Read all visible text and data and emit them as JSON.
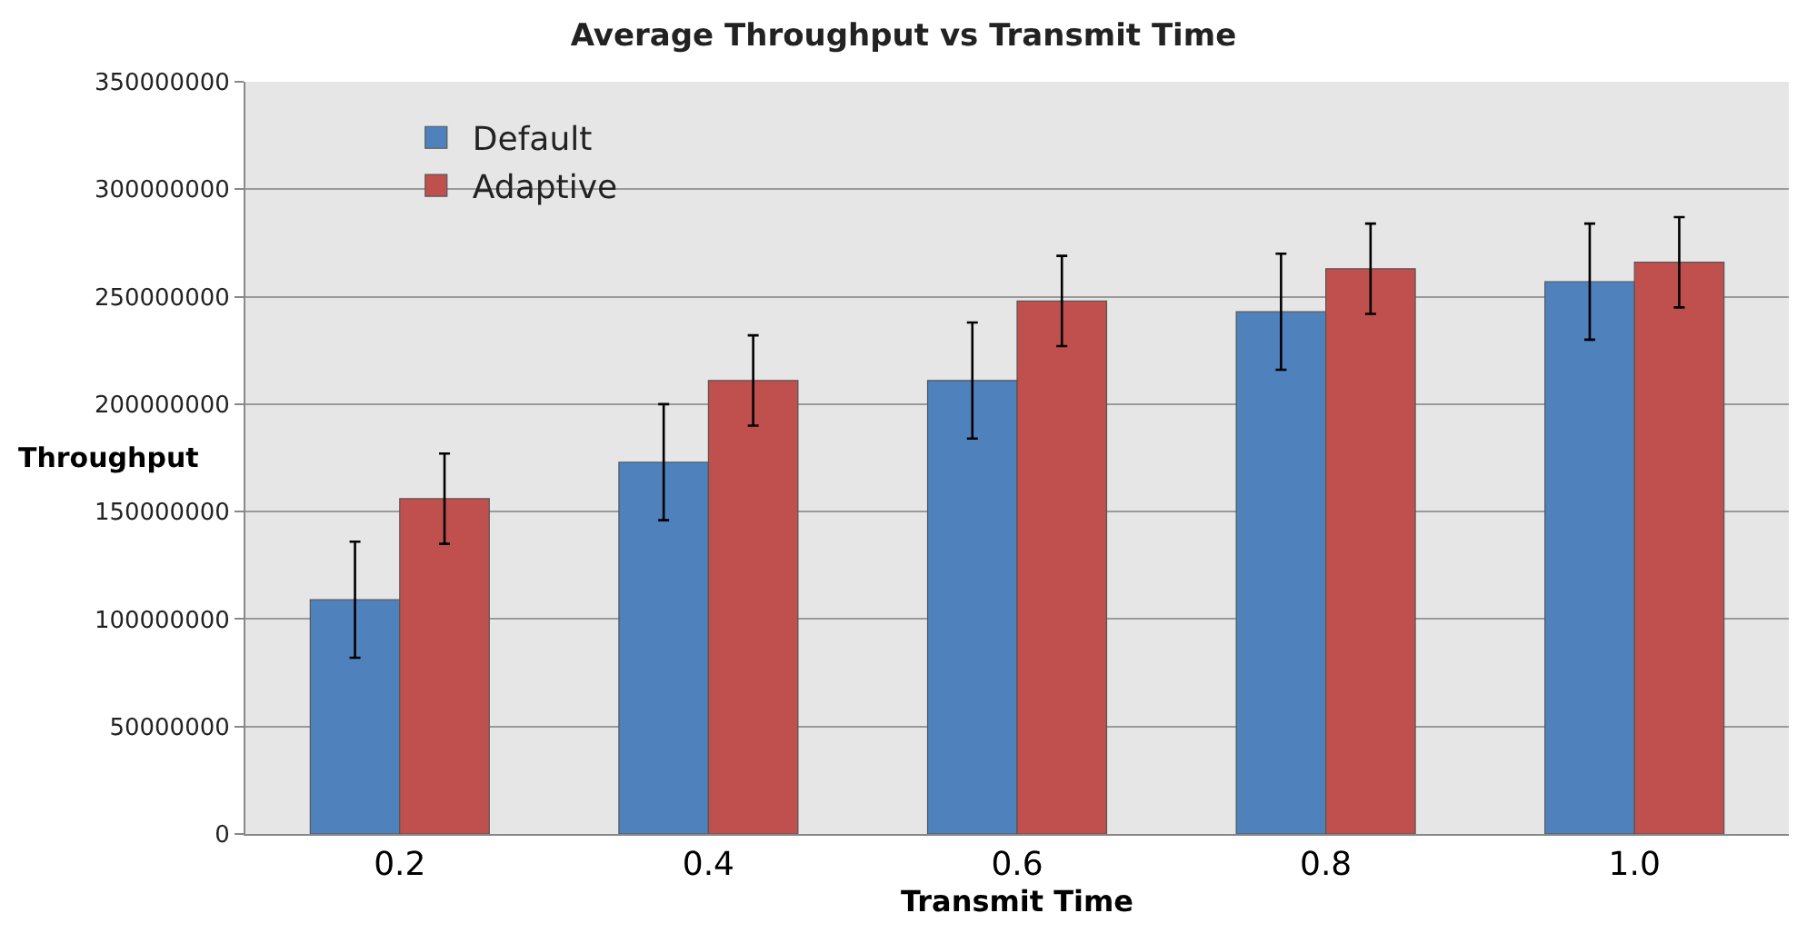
{
  "chart_data": {
    "type": "bar",
    "title": "Average Throughput vs Transmit Time",
    "xlabel": "Transmit Time",
    "ylabel": "Throughput",
    "categories": [
      "0.2",
      "0.4",
      "0.6",
      "0.8",
      "1.0"
    ],
    "series": [
      {
        "name": "Default",
        "color": "#4f81bd",
        "values": [
          109000000,
          173000000,
          211000000,
          243000000,
          257000000
        ],
        "errors": [
          27000000,
          27000000,
          27000000,
          27000000,
          27000000
        ]
      },
      {
        "name": "Adaptive",
        "color": "#c0504d",
        "values": [
          156000000,
          211000000,
          248000000,
          263000000,
          266000000
        ],
        "errors": [
          21000000,
          21000000,
          21000000,
          21000000,
          21000000
        ]
      }
    ],
    "ylim": [
      0,
      350000000
    ],
    "yticks": [
      0,
      50000000,
      100000000,
      150000000,
      200000000,
      250000000,
      300000000,
      350000000
    ],
    "grid": "y",
    "legend": "top left"
  }
}
